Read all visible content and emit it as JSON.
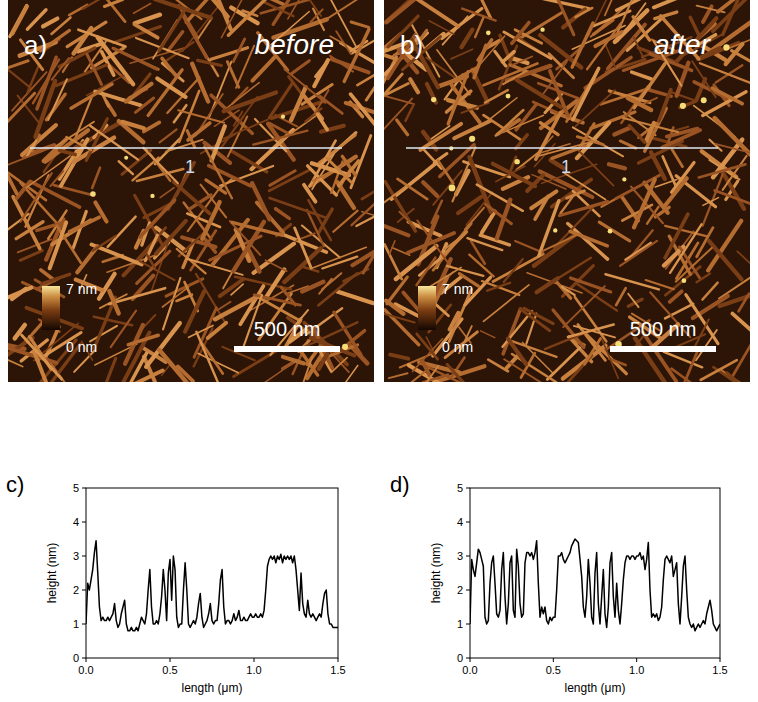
{
  "images": [
    {
      "label": "a)",
      "caption": "before",
      "line_label": "1",
      "colorbar_max": "7 nm",
      "colorbar_min": "0 nm",
      "scale_bar": "500 nm"
    },
    {
      "label": "b)",
      "caption": "after",
      "line_label": "1",
      "colorbar_max": "7 nm",
      "colorbar_min": "0 nm",
      "scale_bar": "500 nm"
    }
  ],
  "chart_data": [
    {
      "type": "line",
      "title": "c)",
      "xlabel": "length (μm)",
      "ylabel": "height (nm)",
      "color": "#000000",
      "xlim": [
        0,
        1.5
      ],
      "xticks": [
        {
          "value": 0,
          "label": "0.0"
        },
        0.5,
        {
          "value": 1,
          "label": "1.0"
        },
        1.5
      ],
      "ylim": [
        0,
        5
      ],
      "yticks": [
        0,
        1,
        2,
        3,
        4,
        5
      ],
      "x": [
        0,
        0.01,
        0.02,
        0.03,
        0.04,
        0.05,
        0.06,
        0.07,
        0.08,
        0.09,
        0.1,
        0.11,
        0.12,
        0.13,
        0.14,
        0.15,
        0.16,
        0.17,
        0.18,
        0.19,
        0.2,
        0.21,
        0.22,
        0.23,
        0.24,
        0.25,
        0.26,
        0.27,
        0.28,
        0.29,
        0.3,
        0.31,
        0.32,
        0.33,
        0.34,
        0.35,
        0.36,
        0.37,
        0.38,
        0.39,
        0.4,
        0.41,
        0.42,
        0.43,
        0.44,
        0.45,
        0.46,
        0.47,
        0.48,
        0.49,
        0.5,
        0.51,
        0.52,
        0.53,
        0.54,
        0.55,
        0.56,
        0.57,
        0.58,
        0.59,
        0.6,
        0.61,
        0.62,
        0.63,
        0.64,
        0.65,
        0.66,
        0.67,
        0.68,
        0.69,
        0.7,
        0.71,
        0.72,
        0.73,
        0.74,
        0.75,
        0.76,
        0.77,
        0.78,
        0.79,
        0.8,
        0.81,
        0.82,
        0.83,
        0.84,
        0.85,
        0.86,
        0.87,
        0.88,
        0.89,
        0.9,
        0.91,
        0.92,
        0.93,
        0.94,
        0.95,
        0.96,
        0.97,
        0.98,
        0.99,
        1,
        1.01,
        1.02,
        1.03,
        1.04,
        1.05,
        1.06,
        1.07,
        1.08,
        1.09,
        1.1,
        1.11,
        1.12,
        1.13,
        1.14,
        1.15,
        1.16,
        1.17,
        1.18,
        1.19,
        1.2,
        1.21,
        1.22,
        1.23,
        1.24,
        1.25,
        1.26,
        1.27,
        1.28,
        1.29,
        1.3,
        1.31,
        1.32,
        1.33,
        1.34,
        1.35,
        1.36,
        1.37,
        1.38,
        1.39,
        1.4,
        1.41,
        1.42,
        1.43,
        1.44,
        1.45,
        1.46,
        1.47,
        1.48,
        1.49,
        1.5
      ],
      "values": [
        1.0,
        2.2,
        2.0,
        2.3,
        2.6,
        3.1,
        3.45,
        2.5,
        1.5,
        1.1,
        1.2,
        1.1,
        1.1,
        1.2,
        1.1,
        1.2,
        1.3,
        1.6,
        1.1,
        0.9,
        1.0,
        1.3,
        1.5,
        1.7,
        1.0,
        0.8,
        0.8,
        0.9,
        0.8,
        0.8,
        0.9,
        0.8,
        1.0,
        1.2,
        1.1,
        1.0,
        1.3,
        2.0,
        2.6,
        1.5,
        1.0,
        1.0,
        1.1,
        1.0,
        1.3,
        1.8,
        2.6,
        2.0,
        1.1,
        2.5,
        2.9,
        1.7,
        3.0,
        2.6,
        1.2,
        0.9,
        1.0,
        1.0,
        2.0,
        2.8,
        2.0,
        1.0,
        0.9,
        1.0,
        1.1,
        1.0,
        1.2,
        1.6,
        1.9,
        1.2,
        0.9,
        1.0,
        1.1,
        1.3,
        1.6,
        1.1,
        1.0,
        1.1,
        1.1,
        1.6,
        2.3,
        2.6,
        1.5,
        1.0,
        1.1,
        1.1,
        1.0,
        1.1,
        1.3,
        1.1,
        1.2,
        1.4,
        1.1,
        1.1,
        1.2,
        1.1,
        1.1,
        1.2,
        1.3,
        1.2,
        1.2,
        1.3,
        1.2,
        1.2,
        1.3,
        1.2,
        1.4,
        2.0,
        2.7,
        2.9,
        3.0,
        2.9,
        3.0,
        2.8,
        3.0,
        2.9,
        3.05,
        2.8,
        3.0,
        2.9,
        3.0,
        2.9,
        3.0,
        2.8,
        3.0,
        2.6,
        2.0,
        1.4,
        2.5,
        1.6,
        1.3,
        1.2,
        1.7,
        1.3,
        1.2,
        1.3,
        1.2,
        1.1,
        1.2,
        1.3,
        1.2,
        1.6,
        1.9,
        2.0,
        1.3,
        1.0,
        1.0,
        0.9,
        0.9,
        0.9,
        0.9
      ]
    },
    {
      "type": "line",
      "title": "d)",
      "xlabel": "length (μm)",
      "ylabel": "height (nm)",
      "color": "#000000",
      "xlim": [
        0,
        1.5
      ],
      "xticks": [
        {
          "value": 0,
          "label": "0.0"
        },
        0.5,
        {
          "value": 1,
          "label": "1.0"
        },
        1.5
      ],
      "ylim": [
        0,
        5
      ],
      "yticks": [
        0,
        1,
        2,
        3,
        4,
        5
      ],
      "x": [
        0,
        0.01,
        0.02,
        0.03,
        0.04,
        0.05,
        0.06,
        0.07,
        0.08,
        0.09,
        0.1,
        0.11,
        0.12,
        0.13,
        0.14,
        0.15,
        0.16,
        0.17,
        0.18,
        0.19,
        0.2,
        0.21,
        0.22,
        0.23,
        0.24,
        0.25,
        0.26,
        0.27,
        0.28,
        0.29,
        0.3,
        0.31,
        0.32,
        0.33,
        0.34,
        0.35,
        0.36,
        0.37,
        0.38,
        0.39,
        0.4,
        0.41,
        0.42,
        0.43,
        0.44,
        0.45,
        0.46,
        0.47,
        0.48,
        0.49,
        0.5,
        0.51,
        0.52,
        0.53,
        0.54,
        0.55,
        0.56,
        0.57,
        0.58,
        0.59,
        0.6,
        0.61,
        0.62,
        0.63,
        0.64,
        0.65,
        0.66,
        0.67,
        0.68,
        0.69,
        0.7,
        0.71,
        0.72,
        0.73,
        0.74,
        0.75,
        0.76,
        0.77,
        0.78,
        0.79,
        0.8,
        0.81,
        0.82,
        0.83,
        0.84,
        0.85,
        0.86,
        0.87,
        0.88,
        0.89,
        0.9,
        0.91,
        0.92,
        0.93,
        0.94,
        0.95,
        0.96,
        0.97,
        0.98,
        0.99,
        1,
        1.01,
        1.02,
        1.03,
        1.04,
        1.05,
        1.06,
        1.07,
        1.08,
        1.09,
        1.1,
        1.11,
        1.12,
        1.13,
        1.14,
        1.15,
        1.16,
        1.17,
        1.18,
        1.19,
        1.2,
        1.21,
        1.22,
        1.23,
        1.24,
        1.25,
        1.26,
        1.27,
        1.28,
        1.29,
        1.3,
        1.31,
        1.32,
        1.33,
        1.34,
        1.35,
        1.36,
        1.37,
        1.38,
        1.39,
        1.4,
        1.41,
        1.42,
        1.43,
        1.44,
        1.45,
        1.46,
        1.47,
        1.48,
        1.49,
        1.5
      ],
      "values": [
        1.0,
        2.9,
        2.6,
        2.4,
        2.8,
        3.2,
        3.1,
        2.9,
        2.7,
        1.2,
        1.0,
        1.1,
        2.2,
        2.8,
        3.0,
        2.2,
        1.3,
        1.2,
        1.4,
        2.6,
        3.1,
        1.8,
        1.0,
        1.6,
        2.8,
        3.0,
        1.4,
        1.2,
        3.2,
        2.7,
        1.6,
        1.2,
        1.3,
        2.8,
        3.1,
        3.1,
        3.0,
        3.1,
        2.9,
        3.1,
        3.45,
        2.2,
        1.2,
        1.5,
        1.3,
        1.5,
        1.1,
        1.0,
        1.2,
        1.1,
        1.2,
        1.2,
        2.0,
        3.0,
        3.0,
        3.1,
        2.9,
        2.8,
        2.9,
        3.0,
        3.1,
        3.3,
        3.4,
        3.5,
        3.45,
        3.4,
        2.9,
        2.4,
        1.5,
        1.2,
        1.8,
        2.9,
        2.2,
        1.2,
        1.0,
        2.5,
        3.1,
        1.6,
        1.0,
        1.8,
        2.6,
        1.3,
        0.9,
        1.5,
        2.8,
        3.1,
        1.8,
        1.2,
        2.2,
        1.4,
        1.0,
        1.6,
        2.3,
        2.8,
        3.0,
        3.0,
        2.9,
        3.0,
        3.0,
        2.9,
        3.0,
        3.0,
        3.1,
        2.9,
        3.0,
        2.6,
        2.9,
        3.4,
        2.0,
        1.2,
        1.3,
        1.2,
        1.3,
        1.1,
        1.2,
        1.5,
        2.3,
        2.9,
        3.0,
        2.9,
        2.8,
        3.0,
        2.4,
        2.6,
        2.8,
        1.6,
        1.0,
        1.8,
        2.7,
        3.0,
        2.0,
        1.2,
        1.0,
        0.9,
        1.0,
        0.8,
        0.9,
        1.0,
        0.9,
        1.0,
        1.1,
        1.0,
        1.3,
        1.5,
        1.7,
        1.4,
        1.0,
        0.9,
        0.8,
        0.9,
        1.0
      ]
    }
  ]
}
